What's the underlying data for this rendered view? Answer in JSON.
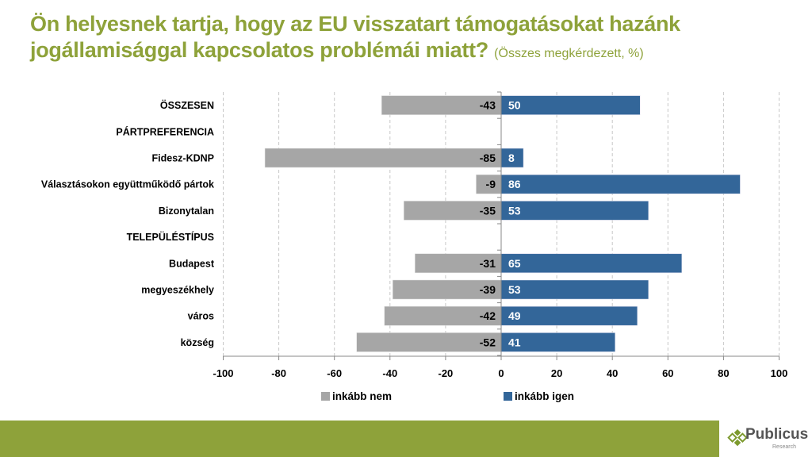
{
  "header": {
    "title": "Ön helyesnek tartja, hogy az EU visszatart támogatásokat hazánk jogállamisággal kapcsolatos problémái miatt?",
    "subtitle": "(Összes megkérdezett, %)"
  },
  "brand": {
    "logo_name": "Publicus",
    "logo_sub": "Research",
    "accent_color": "#8ea23a"
  },
  "chart_data": {
    "type": "bar",
    "orientation": "horizontal-diverging",
    "title": "Ön helyesnek tartja, hogy az EU visszatart támogatásokat hazánk jogállamisággal kapcsolatos problémái miatt? (Összes megkérdezett, %)",
    "xlabel": "",
    "ylabel": "",
    "xlim": [
      -100,
      100
    ],
    "x_ticks": [
      -100,
      -80,
      -60,
      -40,
      -20,
      0,
      20,
      40,
      60,
      80,
      100
    ],
    "grid": true,
    "legend_position": "bottom",
    "categories": [
      "ÖSSZESEN",
      "PÁRTPREFERENCIA",
      "Fidesz-KDNP",
      "Választásokon együttműködő pártok",
      "Bizonytalan",
      "TELEPÜLÉSTÍPUS",
      "Budapest",
      "megyeszékhely",
      "város",
      "község"
    ],
    "series": [
      {
        "name": "inkább nem",
        "color": "#a6a6a6",
        "values": [
          -43,
          null,
          -85,
          -9,
          -35,
          null,
          -31,
          -39,
          -42,
          -52
        ]
      },
      {
        "name": "inkább igen",
        "color": "#336699",
        "values": [
          50,
          null,
          8,
          86,
          53,
          null,
          65,
          53,
          49,
          41
        ]
      }
    ]
  }
}
